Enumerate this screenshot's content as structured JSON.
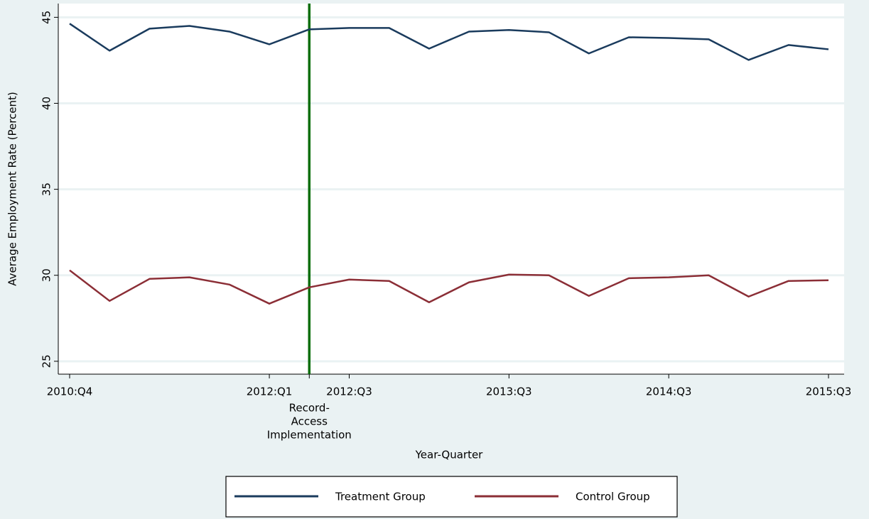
{
  "chart_data": {
    "type": "line",
    "x_label": "Year-Quarter",
    "y_label": "Average Employment Rate (Percent)",
    "categories": [
      "2010:Q4",
      null,
      null,
      null,
      null,
      "2012:Q1",
      null,
      "2012:Q3",
      null,
      null,
      null,
      "2013:Q3",
      null,
      null,
      null,
      "2014:Q3",
      null,
      null,
      null,
      "2015:Q3"
    ],
    "series": [
      {
        "name": "Treatment Group",
        "color": "#1a3b5d",
        "values": [
          44.63,
          43.06,
          44.34,
          44.5,
          44.17,
          43.43,
          44.3,
          44.38,
          44.38,
          43.18,
          44.17,
          44.26,
          44.13,
          42.9,
          43.84,
          43.8,
          43.72,
          42.52,
          43.39,
          43.14
        ]
      },
      {
        "name": "Control Group",
        "color": "#8b2e36",
        "values": [
          30.29,
          28.51,
          29.79,
          29.88,
          29.46,
          28.35,
          29.3,
          29.75,
          29.67,
          28.43,
          29.59,
          30.04,
          30.0,
          28.8,
          29.83,
          29.88,
          30.0,
          28.76,
          29.67,
          29.71
        ]
      }
    ],
    "reference_line": {
      "category_index": 6,
      "color": "#0a6e0a",
      "label": [
        "Record-",
        "Access",
        "Implementation"
      ]
    },
    "ylim": [
      24.25,
      45.8
    ],
    "yticks": [
      25,
      30,
      35,
      40,
      45
    ],
    "grid": true,
    "legend": "bottom"
  }
}
